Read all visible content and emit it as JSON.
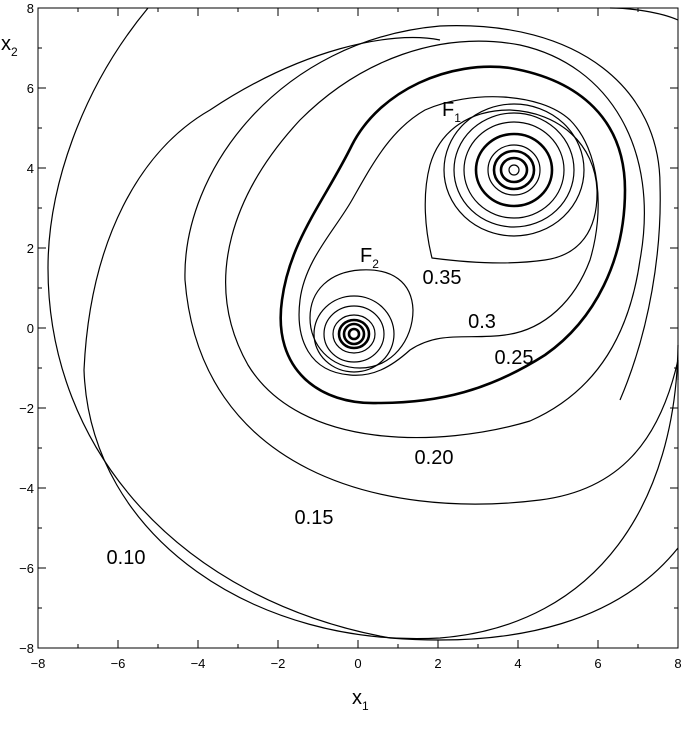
{
  "chart_data": {
    "type": "contour",
    "xlim": [
      -8,
      8
    ],
    "ylim": [
      -8,
      8
    ],
    "xlabel": {
      "main": "x",
      "sub": "1"
    },
    "ylabel": {
      "main": "x",
      "sub": "2"
    },
    "x_ticks": [
      "-8",
      "-6",
      "-4",
      "-2",
      "0",
      "2",
      "4",
      "6",
      "8"
    ],
    "y_ticks": [
      "8",
      "6",
      "4",
      "2",
      "0",
      "-2",
      "-4",
      "-6",
      "-8"
    ],
    "x_tick_values": [
      -8,
      -6,
      -4,
      -2,
      0,
      2,
      4,
      6,
      8
    ],
    "y_tick_values": [
      8,
      6,
      4,
      2,
      0,
      -2,
      -4,
      -6,
      -8
    ],
    "grid": false,
    "sources": [
      {
        "name": "F1",
        "label_main": "F",
        "label_sub": "1",
        "x": 3.9,
        "y": 3.95
      },
      {
        "name": "F2",
        "label_main": "F",
        "label_sub": "2",
        "x": -0.1,
        "y": -0.15
      }
    ],
    "contour_labels": [
      {
        "text": "0.10",
        "x": -5.8,
        "y": -5.9
      },
      {
        "text": "0.15",
        "x": -1.1,
        "y": -4.9
      },
      {
        "text": "0.20",
        "x": 1.9,
        "y": -3.4
      },
      {
        "text": "0.25",
        "x": 3.9,
        "y": -0.9
      },
      {
        "text": "0.3",
        "x": 3.1,
        "y": 0.0
      },
      {
        "text": "0.35",
        "x": 2.1,
        "y": 1.1
      }
    ]
  }
}
